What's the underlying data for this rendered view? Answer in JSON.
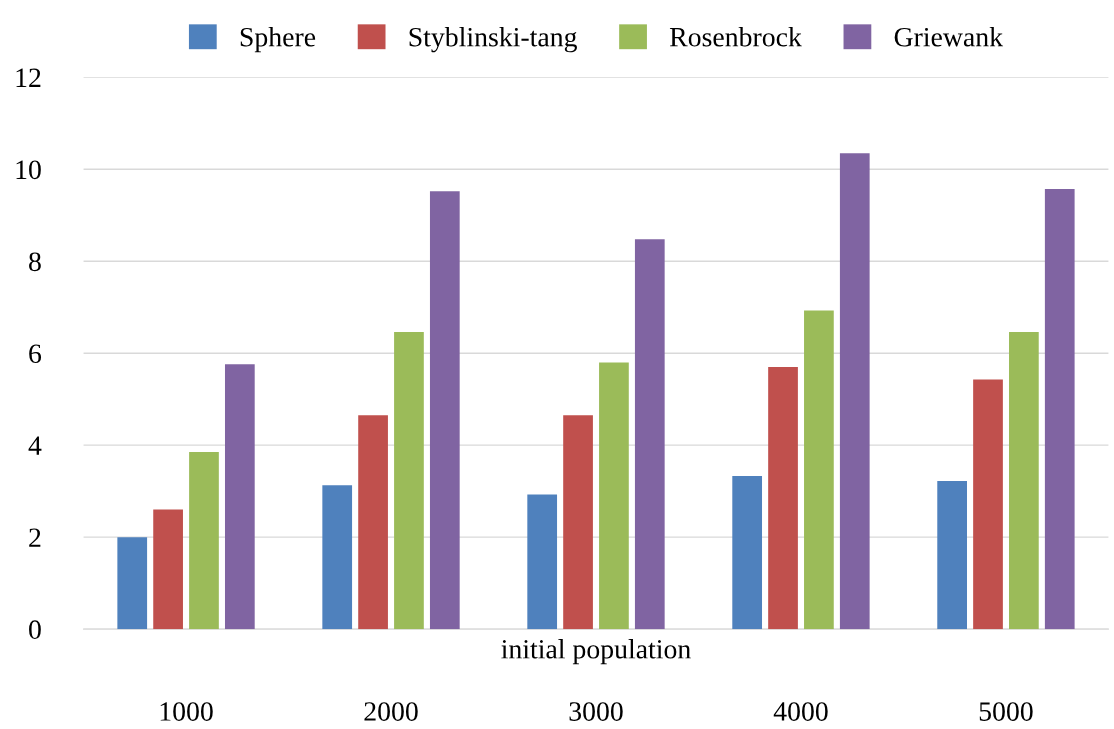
{
  "chart_data": {
    "type": "bar",
    "xlabel": "initial population",
    "categories": [
      "1000",
      "2000",
      "3000",
      "4000",
      "5000"
    ],
    "series": [
      {
        "name": "Sphere",
        "color": "#4f81bd",
        "values": [
          2.0,
          3.13,
          2.93,
          3.33,
          3.22
        ]
      },
      {
        "name": "Styblinski-tang",
        "color": "#c0504d",
        "values": [
          2.6,
          4.65,
          4.65,
          5.7,
          5.43
        ]
      },
      {
        "name": "Rosenbrock",
        "color": "#9bbb59",
        "values": [
          3.85,
          6.46,
          5.8,
          6.93,
          6.46
        ]
      },
      {
        "name": "Griewank",
        "color": "#8064a2",
        "values": [
          5.76,
          9.52,
          8.48,
          10.35,
          9.57
        ]
      }
    ],
    "ylim": [
      0,
      12
    ],
    "yticks": [
      0,
      2,
      4,
      6,
      8,
      10,
      12
    ],
    "grid": "y",
    "legend": "top"
  }
}
